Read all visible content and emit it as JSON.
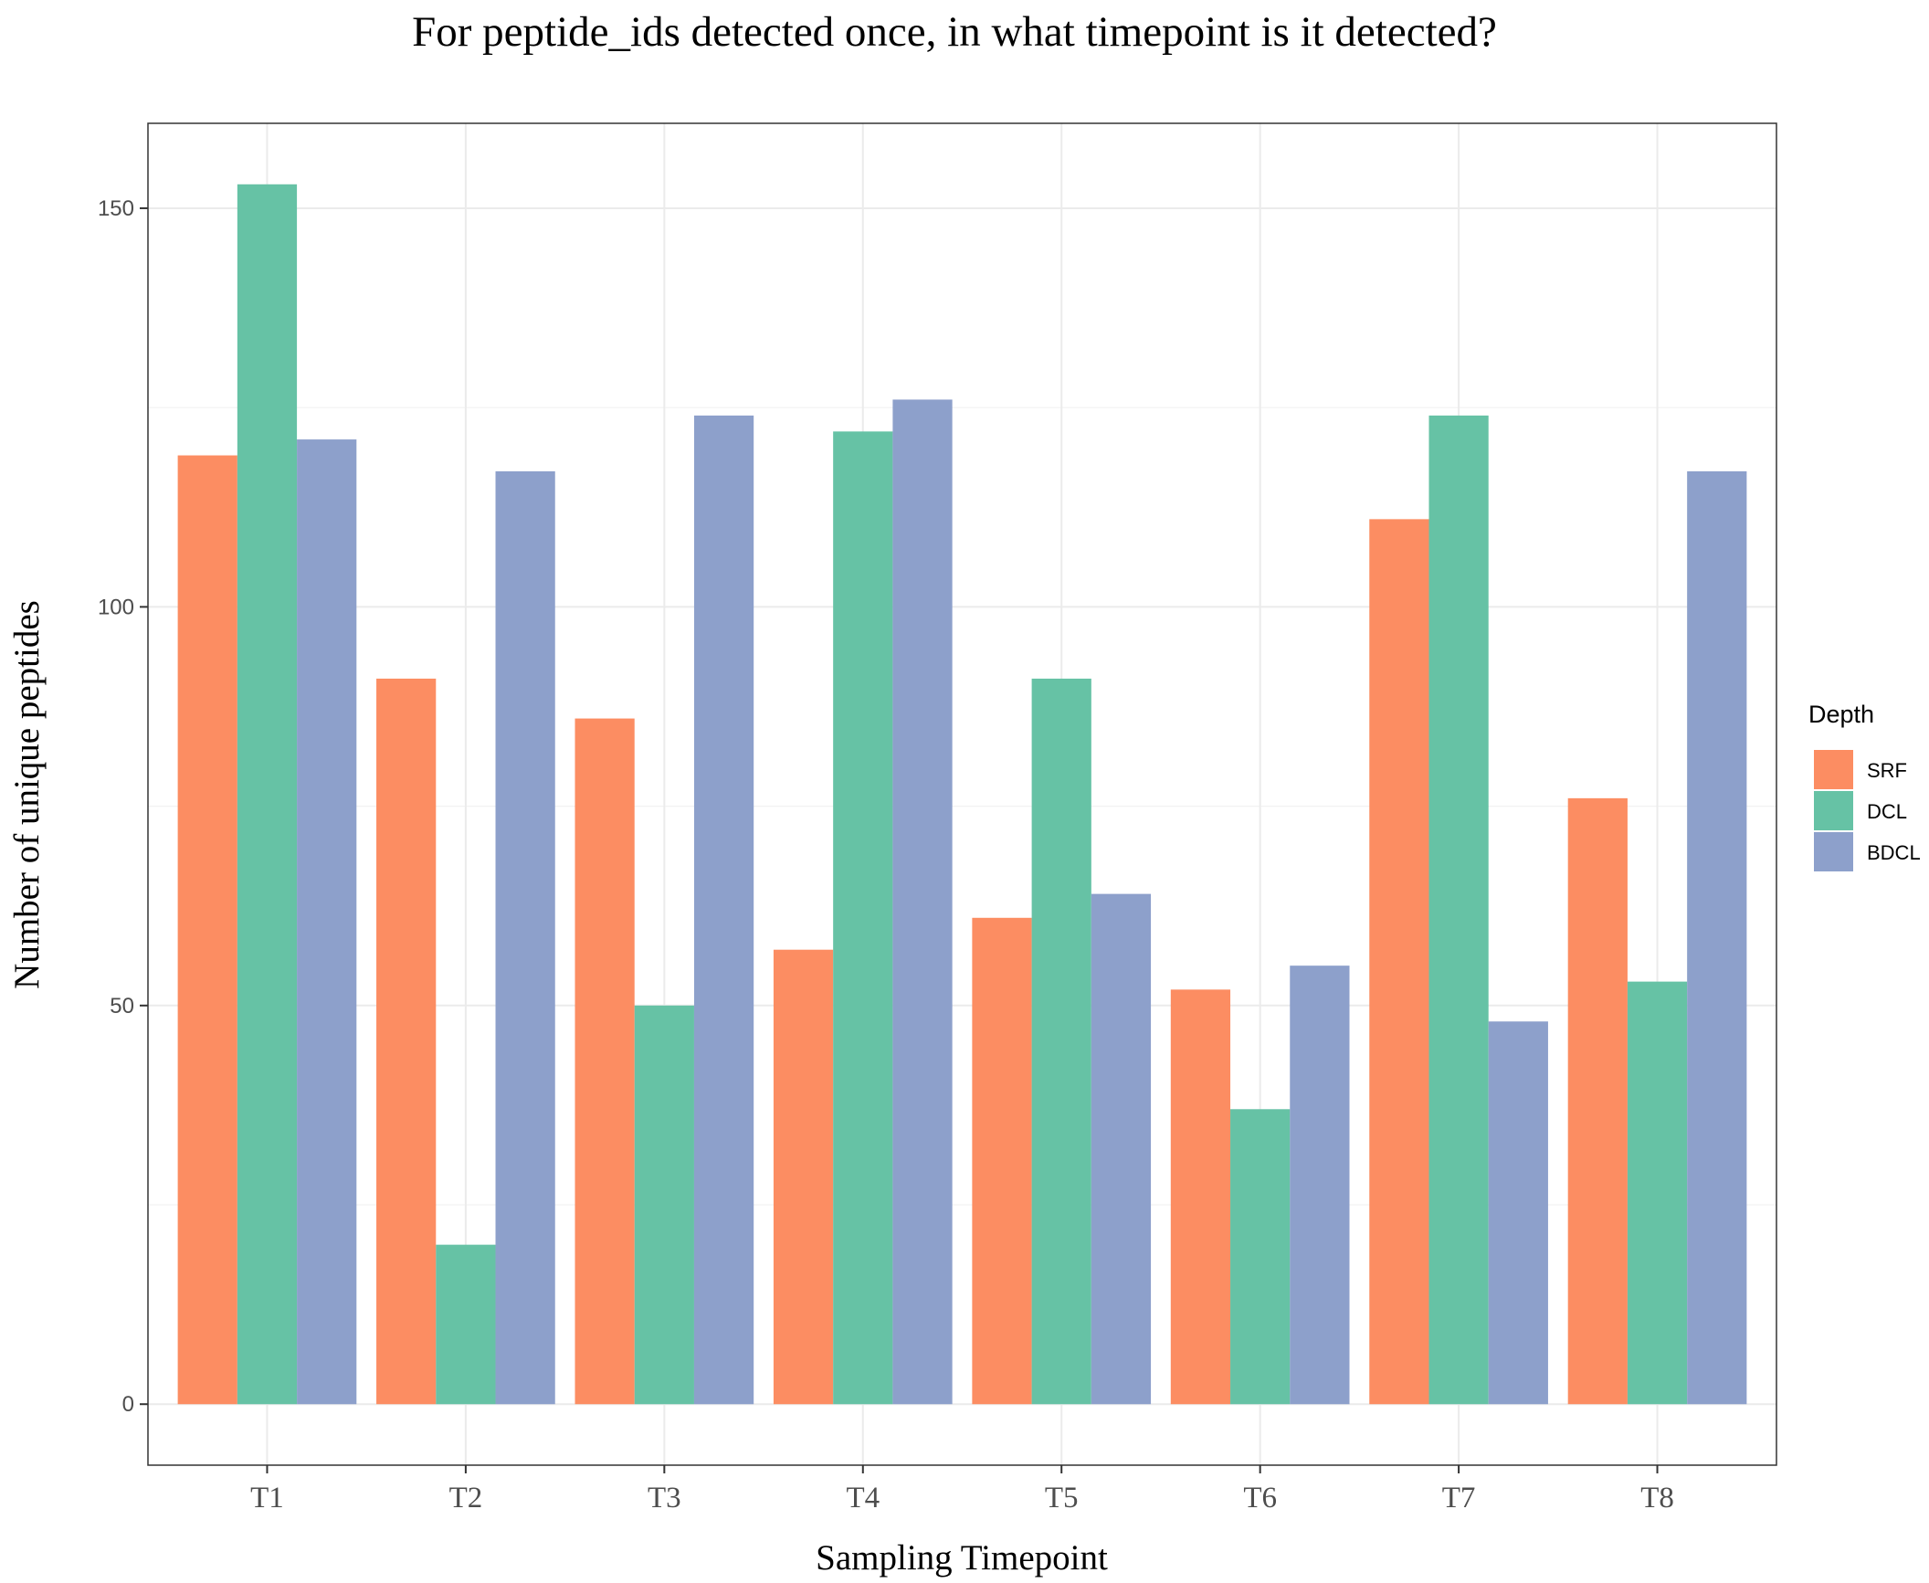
{
  "chart_data": {
    "type": "bar",
    "title": "For peptide_ids detected once, in what timepoint is it detected?",
    "xlabel": "Sampling Timepoint",
    "ylabel": "Number of unique peptides",
    "categories": [
      "T1",
      "T2",
      "T3",
      "T4",
      "T5",
      "T6",
      "T7",
      "T8"
    ],
    "series": [
      {
        "name": "SRF",
        "color": "#FC8D62",
        "values": [
          119,
          91,
          86,
          57,
          61,
          52,
          111,
          76
        ]
      },
      {
        "name": "DCL",
        "color": "#66C2A5",
        "values": [
          153,
          20,
          50,
          122,
          91,
          37,
          124,
          53
        ]
      },
      {
        "name": "BDCL",
        "color": "#8DA0CB",
        "values": [
          121,
          117,
          124,
          126,
          64,
          55,
          48,
          117
        ]
      }
    ],
    "ylim": [
      -7.65,
      160.65
    ],
    "y_ticks": [
      0,
      50,
      100,
      150
    ],
    "grid": true,
    "legend": {
      "title": "Depth",
      "placement": "right"
    }
  }
}
